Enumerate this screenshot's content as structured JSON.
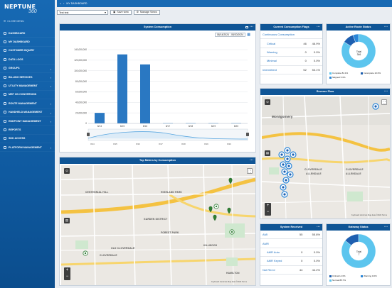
{
  "app": {
    "logo_main": "NEPTUNE",
    "logo_sub": "360",
    "close_menu": "CLOSE MENU"
  },
  "sidebar": {
    "items": [
      {
        "label": "DASHBOARD",
        "icon": "dashboard-icon"
      },
      {
        "label": "MY DASHBOARD",
        "icon": "dashboard-icon"
      },
      {
        "label": "CUSTOMER INQUIRY",
        "icon": "person-icon"
      },
      {
        "label": "DATA LOGS",
        "icon": "log-icon"
      },
      {
        "label": "GROUPS",
        "icon": "group-icon",
        "expandable": true
      },
      {
        "label": "BILLING SERVICES",
        "icon": "billing-icon",
        "expandable": true
      },
      {
        "label": "UTILITY MANAGEMENT",
        "icon": "utility-icon",
        "expandable": true
      },
      {
        "label": "MEP ON CONVERSION",
        "icon": "convert-icon"
      },
      {
        "label": "ROUTE MANAGEMENT",
        "icon": "route-icon",
        "expandable": true
      },
      {
        "label": "HANDHELD MANAGEMENT",
        "icon": "handheld-icon",
        "expandable": true
      },
      {
        "label": "ENDPOINT MANAGEMENT",
        "icon": "endpoint-icon",
        "expandable": true
      },
      {
        "label": "REPORTS",
        "icon": "report-icon"
      },
      {
        "label": "SDK ACCESS",
        "icon": "sdk-icon"
      },
      {
        "label": "PLATFORM MANAGEMENT",
        "icon": "platform-icon",
        "expandable": true
      }
    ]
  },
  "topbar": {
    "breadcrumb": "MY DASHBOARD"
  },
  "toolbar": {
    "view_select": "Test test",
    "save_view": "Save view",
    "manage_views": "Manage Views"
  },
  "consumption": {
    "title": "System Consumption",
    "date_from": "08/14/2024",
    "date_sep": "-",
    "date_to": "08/20/2024",
    "chart_data": {
      "type": "bar",
      "categories": [
        "8/14",
        "8/15",
        "8/16",
        "8/17",
        "8/18",
        "8/19",
        "8/20"
      ],
      "values": [
        20000000,
        131000000,
        112000000,
        600000,
        600000,
        600000,
        600000
      ],
      "ylim": [
        0,
        140000000
      ],
      "ytick_labels": [
        "0",
        "20,000,000",
        "40,000,000",
        "60,000,000",
        "80,000,000",
        "100,000,000",
        "120,000,000",
        "140,000,000"
      ],
      "grid": true,
      "color": "#2a78c2"
    }
  },
  "flags": {
    "title": "Current Consumption Flags",
    "rows": [
      {
        "label": "Continuous Consumption",
        "count": "",
        "pct": ""
      },
      {
        "label": "Critical",
        "count": "46",
        "pct": "46.9%"
      },
      {
        "label": "Warning",
        "count": "0",
        "pct": "0.0%"
      },
      {
        "label": "Minimal",
        "count": "0",
        "pct": "0.0%"
      },
      {
        "label": "Intermittent",
        "count": "52",
        "pct": "53.1%"
      }
    ]
  },
  "route_status": {
    "title": "Active Route Status",
    "center_label": "Total",
    "center_value": "346",
    "chart_data": {
      "type": "pie",
      "series": [
        {
          "name": "Complete",
          "pct": 84.1,
          "color": "#5cc5ee"
        },
        {
          "name": "Incomplete",
          "pct": 10.6,
          "color": "#1d5fb0"
        },
        {
          "name": "Skipped",
          "pct": 5.3,
          "color": "#2a86d8"
        }
      ]
    },
    "legend": [
      "Complete 84.1%",
      "Incomplete 10.6%",
      "Skipped 5.3%"
    ]
  },
  "reverse_flow": {
    "title": "Reverse Flow",
    "map_label": "Montgomery",
    "labels": [
      "CLOVERDALE",
      "ALLENDALE",
      "CLOVERDALE",
      "ALLENDALE"
    ],
    "credit": "Keyboard shortcuts  Map data ©2024  Terms"
  },
  "top_meters": {
    "title": "Top Meters by Consumption",
    "labels": [
      "CENTENNIAL HILL",
      "HIGHLAND PARK",
      "GARDEN DISTRICT",
      "FOREST PARK",
      "OLD CLOVERDALE",
      "CLOVERDALE",
      "HILLWOOD",
      "HAMILTON"
    ],
    "credit": "Keyboard shortcuts  Map data ©2024  Terms"
  },
  "system_received": {
    "title": "System Received",
    "rows": [
      {
        "label": "AMI",
        "count": "55",
        "pct": "55.8%"
      },
      {
        "label": "AMR",
        "count": "",
        "pct": ""
      },
      {
        "label": "AMR Auto",
        "count": "0",
        "pct": "0.0%"
      },
      {
        "label": "AMR Keyed",
        "count": "0",
        "pct": "0.0%"
      },
      {
        "label": "Not Rec'd",
        "count": "44",
        "pct": "44.2%"
      }
    ]
  },
  "gateway_status": {
    "title": "Gateway Status",
    "center_label": "Total",
    "center_value": "7",
    "chart_data": {
      "type": "pie",
      "series": [
        {
          "name": "Normal",
          "pct": 85.7,
          "color": "#5cc5ee"
        },
        {
          "name": "Critical",
          "pct": 14.3,
          "color": "#1d5fb0"
        },
        {
          "name": "Warning",
          "pct": 0.0,
          "color": "#2a86d8"
        }
      ]
    },
    "legend": [
      "Critical 14.3%",
      "Warning 0.0%",
      "Normal 85.7%"
    ]
  }
}
